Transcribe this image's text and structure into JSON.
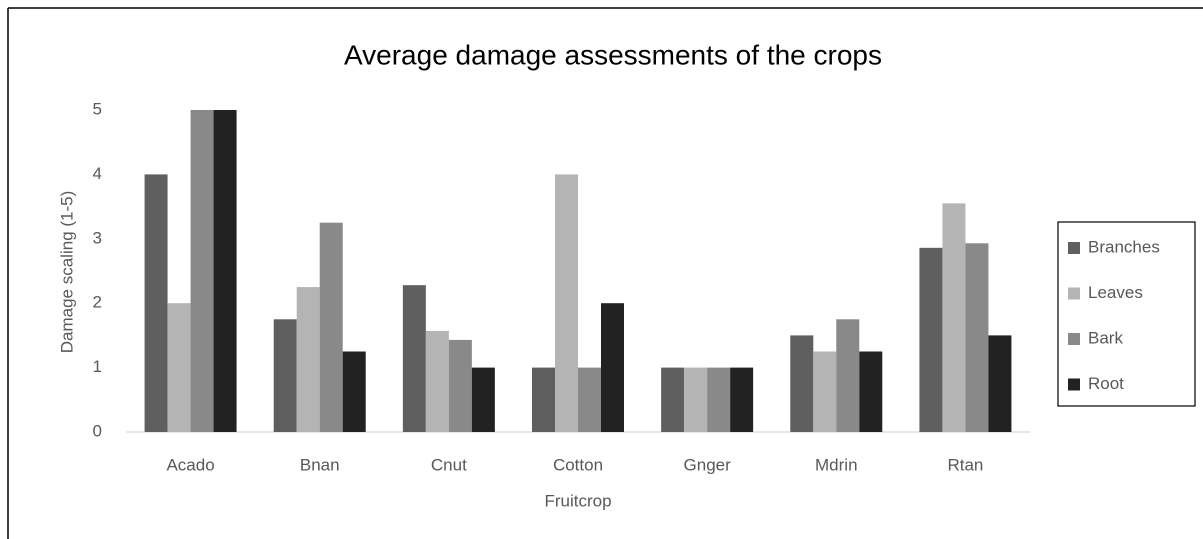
{
  "chart_data": {
    "type": "bar",
    "title": "Average damage assessments of the crops",
    "x_label": "Fruitcrop",
    "y_label": "Damage scaling (1-5)",
    "categories": [
      "Acado",
      "Bnan",
      "Cnut",
      "Cotton",
      "Gnger",
      "Mdrin",
      "Rtan"
    ],
    "series": [
      {
        "name": "Branches",
        "color": "#5f5f5f",
        "values": [
          4,
          1.75,
          2.28,
          1,
          1,
          1.5,
          2.86
        ]
      },
      {
        "name": "Leaves",
        "color": "#b4b4b4",
        "values": [
          2,
          2.25,
          1.57,
          4,
          1,
          1.25,
          3.55
        ]
      },
      {
        "name": "Bark",
        "color": "#898989",
        "values": [
          5,
          3.25,
          1.43,
          1,
          1,
          1.75,
          2.93
        ]
      },
      {
        "name": "Root",
        "color": "#222222",
        "values": [
          5,
          1.25,
          1,
          2,
          1,
          1.25,
          1.5
        ]
      }
    ],
    "ylim": [
      0,
      5
    ],
    "yticks": [
      0,
      1,
      2,
      3,
      4,
      5
    ],
    "grid": false,
    "legend": "right"
  }
}
